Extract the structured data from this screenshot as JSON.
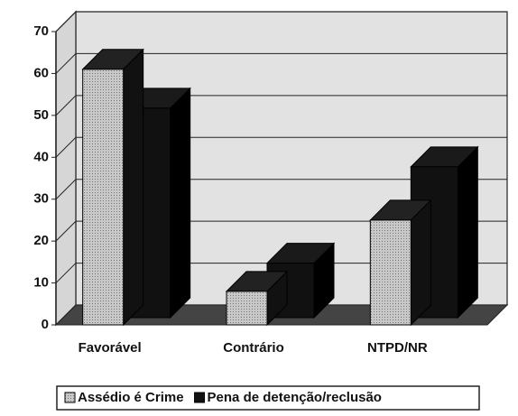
{
  "chart_data": {
    "type": "bar3d",
    "categories": [
      "Favorável",
      "Contrário",
      "NTPD/NR"
    ],
    "series": [
      {
        "name": "Assédio é Crime",
        "color": "#b4b4b4",
        "values": [
          61,
          8,
          25
        ]
      },
      {
        "name": "Pena de detenção/reclusão",
        "color": "#111111",
        "values": [
          50,
          13,
          36
        ]
      }
    ],
    "ylim": [
      0,
      70
    ],
    "yticks": [
      0,
      10,
      20,
      30,
      40,
      50,
      60,
      70
    ],
    "grid": true,
    "legend": "bottom"
  }
}
